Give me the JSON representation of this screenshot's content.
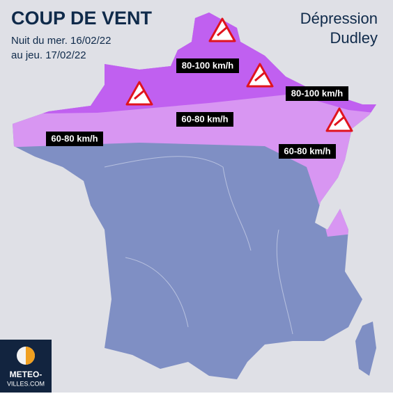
{
  "header": {
    "title": "COUP DE VENT",
    "subtitle": [
      "Nuit du mer. 16/02/22",
      "au jeu. 17/02/22"
    ],
    "storm": [
      "Dépression",
      "Dudley"
    ]
  },
  "zones": [
    {
      "label": "80-100 km/h"
    },
    {
      "label": "80-100 km/h"
    },
    {
      "label": "60-80 km/h"
    },
    {
      "label": "60-80 km/h"
    },
    {
      "label": "60-80 km/h"
    }
  ],
  "logo": {
    "line1": "METEO-",
    "line2": "VILLES.COM"
  }
}
